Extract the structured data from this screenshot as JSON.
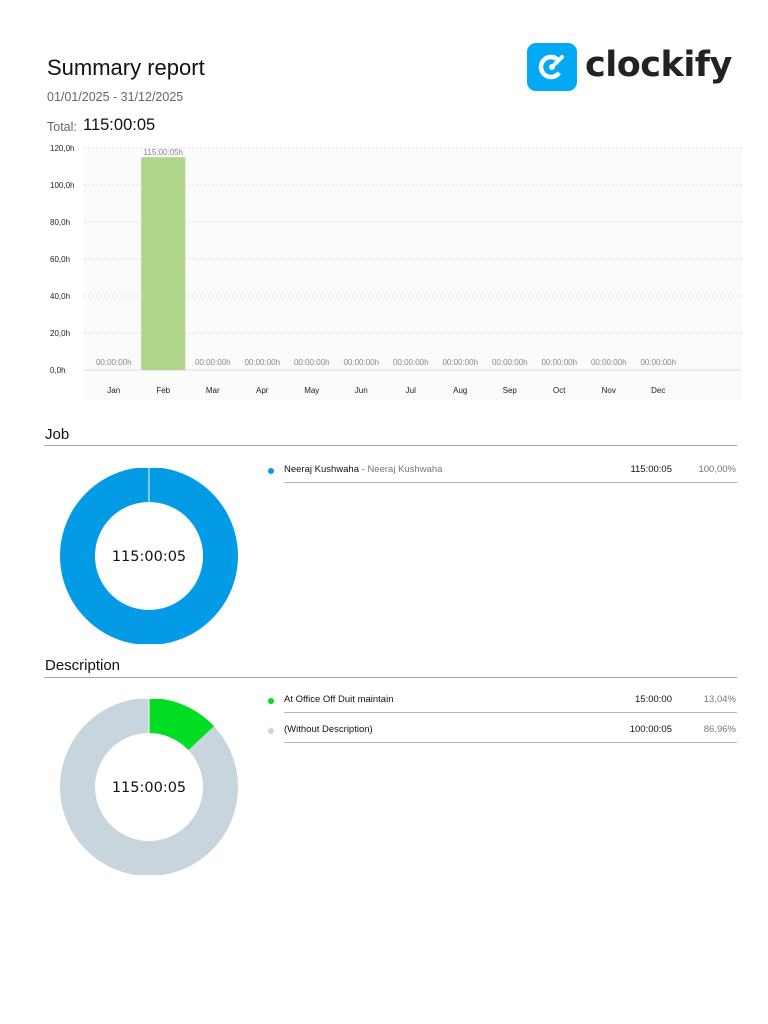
{
  "report": {
    "title": "Summary report",
    "date_range": "01/01/2025 - 31/12/2025",
    "total_label": "Total:",
    "total_value": "115:00:05"
  },
  "brand": {
    "logo_text": "clockify",
    "logo_icon": "clockify-logo-icon",
    "color": "#03a9f4"
  },
  "chart_data": [
    {
      "type": "bar",
      "categories": [
        "Jan",
        "Feb",
        "Mar",
        "Apr",
        "May",
        "Jun",
        "Jul",
        "Aug",
        "Sep",
        "Oct",
        "Nov",
        "Dec"
      ],
      "values": [
        0,
        115.0014,
        0,
        0,
        0,
        0,
        0,
        0,
        0,
        0,
        0,
        0
      ],
      "data_labels": [
        "00:00:00h",
        "115:00:05h",
        "00:00:00h",
        "00:00:00h",
        "00:00:00h",
        "00:00:00h",
        "00:00:00h",
        "00:00:00h",
        "00:00:00h",
        "00:00:00h",
        "00:00:00h",
        "00:00:00h"
      ],
      "y_ticks": [
        0,
        20,
        40,
        60,
        80,
        100,
        120
      ],
      "y_tick_labels": [
        "0,0h",
        "20,0h",
        "40,0h",
        "60,0h",
        "80,0h",
        "100,0h",
        "120,0h"
      ],
      "ylim": [
        0,
        120
      ],
      "grid": true,
      "bar_color": "#aed58a"
    },
    {
      "type": "pie",
      "center_label": "115:00:05",
      "slices": [
        {
          "name": "Neeraj Kushwaha",
          "value": 100.0,
          "color": "#039be5"
        }
      ]
    },
    {
      "type": "pie",
      "center_label": "115:00:05",
      "slices": [
        {
          "name": "At Office Off Duit maintain",
          "value": 13.04,
          "color": "#00dd22"
        },
        {
          "name": "(Without Description)",
          "value": 86.96,
          "color": "#c8d5dc"
        }
      ]
    }
  ],
  "job": {
    "section_title": "Job",
    "items": [
      {
        "name": "Neeraj Kushwaha",
        "sub": " - Neeraj Kushwaha",
        "duration": "115:00:05",
        "percent": "100,00%",
        "color": "#039be5"
      }
    ]
  },
  "description": {
    "section_title": "Description",
    "items": [
      {
        "name": "At Office Off Duit maintain",
        "sub": "",
        "duration": "15:00:00",
        "percent": "13,04%",
        "color": "#00dd22"
      },
      {
        "name": "(Without Description)",
        "sub": "",
        "duration": "100:00:05",
        "percent": "86,96%",
        "color": "#c8d5dc"
      }
    ]
  }
}
